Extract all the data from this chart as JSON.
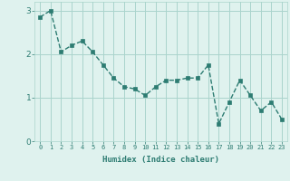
{
  "x": [
    0,
    1,
    2,
    3,
    4,
    5,
    6,
    7,
    8,
    9,
    10,
    11,
    12,
    13,
    14,
    15,
    16,
    17,
    18,
    19,
    20,
    21,
    22,
    23
  ],
  "y": [
    2.85,
    3.0,
    2.05,
    2.2,
    2.3,
    2.05,
    1.75,
    1.45,
    1.25,
    1.2,
    1.05,
    1.25,
    1.4,
    1.4,
    1.45,
    1.45,
    1.75,
    0.4,
    0.9,
    1.4,
    1.05,
    0.7,
    0.9,
    0.5
  ],
  "line_color": "#2d7c72",
  "marker": "s",
  "marker_size": 2.5,
  "xlabel": "Humidex (Indice chaleur)",
  "xlim": [
    -0.5,
    23.5
  ],
  "ylim": [
    0,
    3.2
  ],
  "yticks": [
    0,
    1,
    2,
    3
  ],
  "xticks": [
    0,
    1,
    2,
    3,
    4,
    5,
    6,
    7,
    8,
    9,
    10,
    11,
    12,
    13,
    14,
    15,
    16,
    17,
    18,
    19,
    20,
    21,
    22,
    23
  ],
  "background_color": "#dff2ee",
  "grid_color": "#aad4cc",
  "tick_color": "#2d7c72",
  "label_color": "#2d7c72",
  "line_width": 1.0
}
